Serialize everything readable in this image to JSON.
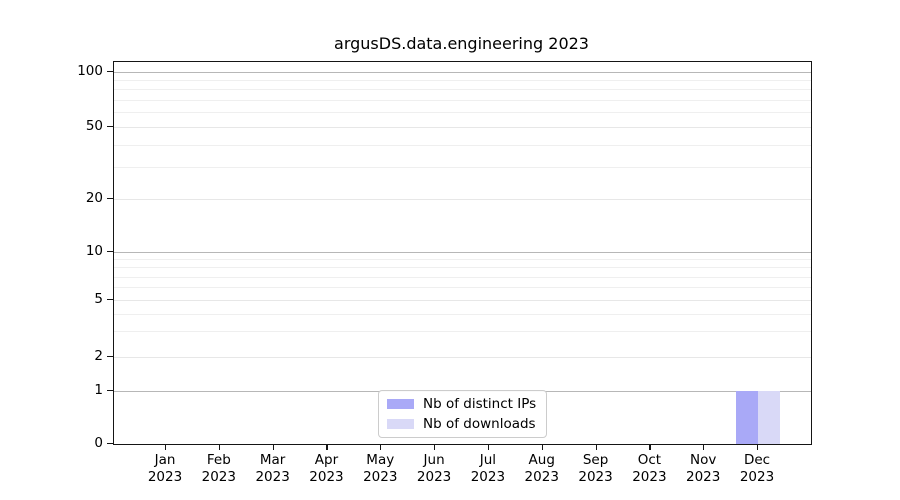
{
  "chart_data": {
    "type": "bar",
    "title": "argusDS.data.engineering 2023",
    "xlabel": "",
    "ylabel": "",
    "yscale": "asinh-like (linear below 1, compressed log above)",
    "ylim": [
      0,
      112
    ],
    "grid": "horizontal major and minor gridlines, darker at powers of 10",
    "legend_position": "lower center inside plot",
    "y_ticks": [
      0,
      1,
      2,
      5,
      10,
      20,
      50,
      100
    ],
    "y_power_gridlines": [
      1,
      10,
      100
    ],
    "y_minor_gridlines": [
      3,
      4,
      6,
      7,
      8,
      9,
      30,
      40,
      60,
      70,
      80,
      90
    ],
    "x_tick_year": "2023",
    "categories": [
      "Jan",
      "Feb",
      "Mar",
      "Apr",
      "May",
      "Jun",
      "Jul",
      "Aug",
      "Sep",
      "Oct",
      "Nov",
      "Dec"
    ],
    "series": [
      {
        "name": "Nb of distinct IPs",
        "color": "#a9a9f7",
        "values": [
          0,
          0,
          0,
          0,
          0,
          0,
          0,
          0,
          0,
          0,
          0,
          1
        ]
      },
      {
        "name": "Nb of downloads",
        "color": "#d9d9f7",
        "values": [
          0,
          0,
          0,
          0,
          0,
          0,
          0,
          0,
          0,
          0,
          0,
          1
        ]
      }
    ]
  }
}
